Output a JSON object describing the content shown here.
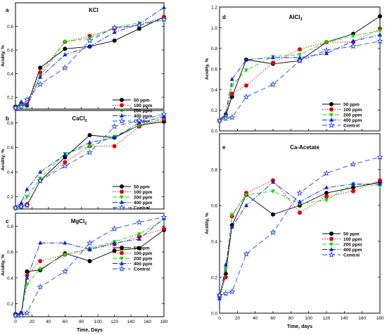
{
  "colors": {
    "50 ppm": "#000000",
    "100 ppm": "#e00000",
    "200 ppm": "#11dd00",
    "400 ppm": "#0022ee",
    "Control": "#2244ee"
  },
  "chart_data": [
    {
      "type": "line",
      "panel": "a",
      "title": "KCl",
      "ylabel": "Acidity, %",
      "xlabel": "",
      "xlim": [
        0,
        180
      ],
      "ylim": [
        0.1,
        1.0
      ],
      "yticks": [
        "0.2",
        "0.4",
        "0.6",
        "0.8"
      ],
      "xticks": [],
      "legend": [
        "50 ppm",
        "100 ppm",
        "200 ppm",
        "400 ppm",
        "Control"
      ],
      "x": [
        0,
        7,
        14,
        30,
        60,
        90,
        120,
        150,
        180
      ],
      "series": [
        {
          "name": "50 ppm",
          "values": [
            0.12,
            0.14,
            0.13,
            0.45,
            0.61,
            0.63,
            0.68,
            0.78,
            0.88
          ]
        },
        {
          "name": "100 ppm",
          "values": [
            0.11,
            0.15,
            0.14,
            0.41,
            0.67,
            0.72,
            0.78,
            0.81,
            0.88
          ]
        },
        {
          "name": "200 ppm",
          "values": [
            0.1,
            0.13,
            0.12,
            0.38,
            0.67,
            0.7,
            0.79,
            0.83,
            0.85
          ]
        },
        {
          "name": "400 ppm",
          "values": [
            0.11,
            0.16,
            0.13,
            0.37,
            0.56,
            0.63,
            0.75,
            0.82,
            0.96
          ]
        },
        {
          "name": "Control",
          "values": [
            0.11,
            0.12,
            0.18,
            0.31,
            0.45,
            0.68,
            0.79,
            0.81,
            0.86
          ]
        }
      ]
    },
    {
      "type": "line",
      "panel": "b",
      "title": "CaCl2",
      "ylabel": "Acidity, %",
      "xlabel": "",
      "xlim": [
        0,
        180
      ],
      "ylim": [
        0.1,
        0.9
      ],
      "yticks": [
        "0.2",
        "0.4",
        "0.6",
        "0.8"
      ],
      "xticks": [],
      "legend": [
        "50 ppm",
        "100 ppm",
        "200 ppm",
        "400 ppm",
        "Control"
      ],
      "x": [
        0,
        7,
        14,
        30,
        60,
        90,
        120,
        150,
        180
      ],
      "series": [
        {
          "name": "50 ppm",
          "values": [
            0.11,
            0.12,
            0.13,
            0.33,
            0.52,
            0.7,
            0.68,
            0.78,
            0.81
          ]
        },
        {
          "name": "100 ppm",
          "values": [
            0.11,
            0.13,
            0.14,
            0.33,
            0.48,
            0.61,
            0.61,
            0.77,
            0.83
          ]
        },
        {
          "name": "200 ppm",
          "values": [
            0.1,
            0.13,
            0.2,
            0.35,
            0.55,
            0.61,
            0.69,
            0.78,
            0.84
          ]
        },
        {
          "name": "400 ppm",
          "values": [
            0.12,
            0.15,
            0.26,
            0.4,
            0.54,
            0.64,
            0.68,
            0.8,
            0.85
          ]
        },
        {
          "name": "Control",
          "values": [
            0.11,
            0.12,
            0.13,
            0.33,
            0.45,
            0.56,
            0.77,
            0.82,
            0.87
          ]
        }
      ]
    },
    {
      "type": "line",
      "panel": "c",
      "title": "MgCl2",
      "ylabel": "Acidity, %",
      "xlabel": "Time, Days",
      "xlim": [
        0,
        180
      ],
      "ylim": [
        0.1,
        0.9
      ],
      "yticks": [
        "0.2",
        "0.4",
        "0.6",
        "0.8"
      ],
      "xticks": [
        "0",
        "20",
        "40",
        "60",
        "80",
        "100",
        "120",
        "140",
        "160",
        "180"
      ],
      "legend": [
        "50 ppm",
        "100 ppm",
        "200 ppm",
        "400 ppm",
        "Control"
      ],
      "x": [
        0,
        7,
        14,
        30,
        60,
        90,
        120,
        150,
        180
      ],
      "series": [
        {
          "name": "50 ppm",
          "values": [
            0.12,
            0.12,
            0.45,
            0.46,
            0.59,
            0.53,
            0.61,
            0.63,
            0.77
          ]
        },
        {
          "name": "100 ppm",
          "values": [
            0.11,
            0.13,
            0.42,
            0.53,
            0.58,
            0.62,
            0.66,
            0.72,
            0.78
          ]
        },
        {
          "name": "200 ppm",
          "values": [
            0.1,
            0.12,
            0.35,
            0.47,
            0.58,
            0.63,
            0.68,
            0.74,
            0.85
          ]
        },
        {
          "name": "400 ppm",
          "values": [
            0.12,
            0.13,
            0.4,
            0.67,
            0.67,
            0.62,
            0.67,
            0.7,
            0.86
          ]
        },
        {
          "name": "Control",
          "values": [
            0.11,
            0.11,
            0.13,
            0.33,
            0.45,
            0.67,
            0.78,
            0.83,
            0.87
          ]
        }
      ]
    },
    {
      "type": "line",
      "panel": "d",
      "title": "AlCl3",
      "ylabel": "Acidity, %",
      "xlabel": "",
      "xlim": [
        0,
        180
      ],
      "ylim": [
        0.0,
        1.2
      ],
      "yticks": [
        "0.0",
        "0.2",
        "0.4",
        "0.6",
        "0.8",
        "1.0",
        "1.2"
      ],
      "xticks": [],
      "legend": [
        "50 ppm",
        "100 ppm",
        "200 ppm",
        "400 ppm",
        "Control"
      ],
      "x": [
        0,
        7,
        14,
        30,
        60,
        90,
        120,
        150,
        180
      ],
      "series": [
        {
          "name": "50 ppm",
          "values": [
            0.1,
            0.15,
            0.33,
            0.69,
            0.65,
            0.68,
            0.86,
            0.94,
            1.11
          ]
        },
        {
          "name": "100 ppm",
          "values": [
            0.1,
            0.16,
            0.36,
            0.44,
            0.66,
            0.79,
            0.86,
            0.86,
            0.99
          ]
        },
        {
          "name": "200 ppm",
          "values": [
            0.1,
            0.14,
            0.44,
            0.59,
            0.72,
            0.74,
            0.86,
            0.92,
            0.97
          ]
        },
        {
          "name": "400 ppm",
          "values": [
            0.11,
            0.17,
            0.5,
            0.69,
            0.71,
            0.71,
            0.75,
            0.87,
            0.93
          ]
        },
        {
          "name": "Control",
          "values": [
            0.1,
            0.12,
            0.13,
            0.33,
            0.45,
            0.68,
            0.78,
            0.82,
            0.87
          ]
        }
      ]
    },
    {
      "type": "line",
      "panel": "e",
      "title": "Ca-Acetate",
      "ylabel": "Acidity, %",
      "xlabel": "Time, days",
      "xlim": [
        0,
        180
      ],
      "ylim": [
        0.0,
        1.0
      ],
      "yticks": [
        "0.0",
        "0.2",
        "0.4",
        "0.6",
        "0.8"
      ],
      "xticks": [
        "0",
        "20",
        "40",
        "60",
        "80",
        "100",
        "120",
        "140",
        "160",
        "180"
      ],
      "legend": [
        "50 ppm",
        "100 ppm",
        "200 ppm",
        "400 ppm",
        "Control"
      ],
      "x": [
        0,
        7,
        14,
        30,
        60,
        90,
        120,
        150,
        180
      ],
      "series": [
        {
          "name": "50 ppm",
          "values": [
            0.1,
            0.22,
            0.49,
            0.66,
            0.55,
            0.6,
            0.67,
            0.7,
            0.73
          ]
        },
        {
          "name": "100 ppm",
          "values": [
            0.09,
            0.2,
            0.54,
            0.67,
            0.74,
            0.56,
            0.65,
            0.68,
            0.74
          ]
        },
        {
          "name": "200 ppm",
          "values": [
            0.08,
            0.25,
            0.55,
            0.66,
            0.68,
            0.61,
            0.63,
            0.72,
            0.71
          ]
        },
        {
          "name": "400 ppm",
          "values": [
            0.08,
            0.27,
            0.48,
            0.6,
            0.73,
            0.62,
            0.7,
            0.72,
            0.72
          ]
        },
        {
          "name": "Control",
          "values": [
            0.1,
            0.11,
            0.12,
            0.33,
            0.45,
            0.67,
            0.78,
            0.83,
            0.87
          ]
        }
      ]
    }
  ]
}
